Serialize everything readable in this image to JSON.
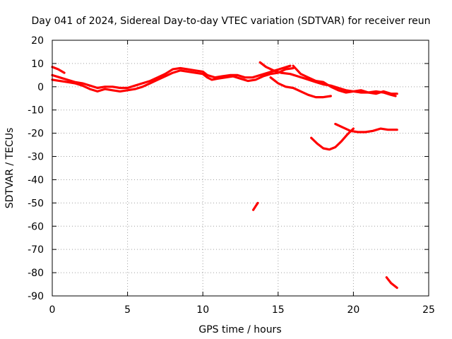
{
  "chart_data": {
    "type": "line",
    "title": "Day 041 of 2024, Sidereal Day-to-day VTEC variation (SDTVAR) for receiver reun",
    "xlabel": "GPS time / hours",
    "ylabel": "SDTVAR / TECUs",
    "xlim": [
      0,
      25
    ],
    "ylim": [
      -90,
      20
    ],
    "xticks": [
      0,
      5,
      10,
      15,
      20,
      25
    ],
    "yticks": [
      20,
      10,
      0,
      -10,
      -20,
      -30,
      -40,
      -50,
      -60,
      -70,
      -80,
      -90
    ],
    "grid": true,
    "color": "#ff0000",
    "series": [
      {
        "name": "arc-main-1",
        "points": [
          [
            0,
            3
          ],
          [
            0.5,
            2.5
          ],
          [
            1,
            2
          ],
          [
            1.5,
            1.5
          ],
          [
            2,
            0.5
          ],
          [
            2.5,
            -1
          ],
          [
            3,
            -2
          ],
          [
            3.5,
            -1
          ],
          [
            4,
            -1.5
          ],
          [
            4.5,
            -2
          ],
          [
            5,
            -1.5
          ],
          [
            5.5,
            -1
          ],
          [
            6,
            0
          ],
          [
            6.5,
            1.5
          ],
          [
            7,
            3
          ],
          [
            7.5,
            4.5
          ],
          [
            8,
            6
          ],
          [
            8.5,
            7
          ],
          [
            9,
            6.5
          ],
          [
            9.5,
            6
          ],
          [
            10,
            5.5
          ],
          [
            10.3,
            4
          ],
          [
            10.6,
            3
          ],
          [
            11,
            3.5
          ],
          [
            11.5,
            4
          ],
          [
            12,
            4.5
          ],
          [
            12.5,
            3.5
          ],
          [
            13,
            2.5
          ],
          [
            13.5,
            3
          ],
          [
            14,
            4.5
          ],
          [
            14.5,
            5.5
          ],
          [
            15,
            6
          ],
          [
            15.5,
            7.5
          ],
          [
            16,
            8
          ]
        ]
      },
      {
        "name": "arc-main-2",
        "points": [
          [
            0,
            5
          ],
          [
            0.5,
            4
          ],
          [
            1,
            3
          ],
          [
            1.5,
            2
          ],
          [
            2,
            1.5
          ],
          [
            2.5,
            0.5
          ],
          [
            3,
            -0.5
          ],
          [
            3.5,
            0
          ],
          [
            4,
            0
          ],
          [
            4.5,
            -0.5
          ],
          [
            5,
            -0.5
          ],
          [
            5.5,
            0.5
          ],
          [
            6,
            1.5
          ],
          [
            6.5,
            2.5
          ],
          [
            7,
            4
          ],
          [
            7.5,
            5.5
          ],
          [
            8,
            7.5
          ],
          [
            8.5,
            8
          ],
          [
            9,
            7.5
          ],
          [
            9.5,
            7
          ],
          [
            10,
            6.5
          ],
          [
            10.3,
            5
          ],
          [
            10.8,
            4
          ],
          [
            11.3,
            4.5
          ],
          [
            11.8,
            5
          ],
          [
            12.3,
            5
          ],
          [
            12.8,
            4
          ],
          [
            13.3,
            4
          ],
          [
            13.8,
            5
          ],
          [
            14.3,
            6
          ],
          [
            14.8,
            7
          ],
          [
            15.3,
            8
          ],
          [
            15.8,
            9
          ]
        ]
      },
      {
        "name": "arc-start",
        "points": [
          [
            0,
            8.5
          ],
          [
            0.4,
            7.5
          ],
          [
            0.8,
            6
          ]
        ]
      },
      {
        "name": "arc-mid-right-1",
        "points": [
          [
            13.8,
            10.5
          ],
          [
            14.2,
            8.5
          ],
          [
            14.7,
            7
          ],
          [
            15.2,
            6
          ],
          [
            15.8,
            5.5
          ],
          [
            16.3,
            4.5
          ],
          [
            16.8,
            3.5
          ],
          [
            17.5,
            2
          ],
          [
            18,
            1
          ],
          [
            18.5,
            0.5
          ],
          [
            19,
            -0.5
          ],
          [
            19.5,
            -1.5
          ],
          [
            20,
            -2
          ],
          [
            20.5,
            -2.5
          ],
          [
            21,
            -2.5
          ],
          [
            21.5,
            -2
          ],
          [
            22,
            -2.5
          ],
          [
            22.5,
            -3.5
          ],
          [
            22.8,
            -4
          ]
        ]
      },
      {
        "name": "arc-mid-right-2",
        "points": [
          [
            16,
            9
          ],
          [
            16.5,
            5.5
          ],
          [
            17,
            4
          ],
          [
            17.5,
            2.5
          ],
          [
            18,
            2
          ],
          [
            18.5,
            0
          ],
          [
            19,
            -1.5
          ],
          [
            19.5,
            -2.5
          ],
          [
            20,
            -2
          ],
          [
            20.5,
            -1.5
          ],
          [
            21,
            -2.5
          ],
          [
            21.5,
            -3
          ],
          [
            22,
            -2
          ],
          [
            22.5,
            -3
          ],
          [
            22.9,
            -3
          ]
        ]
      },
      {
        "name": "arc-dip",
        "points": [
          [
            14.5,
            4
          ],
          [
            15,
            1.5
          ],
          [
            15.5,
            0
          ],
          [
            16,
            -0.5
          ],
          [
            16.5,
            -2
          ],
          [
            17,
            -3.5
          ],
          [
            17.5,
            -4.5
          ],
          [
            18,
            -4.5
          ],
          [
            18.5,
            -4
          ]
        ]
      },
      {
        "name": "arc-low-1",
        "points": [
          [
            17.2,
            -22
          ],
          [
            17.6,
            -24.5
          ],
          [
            18,
            -26.5
          ],
          [
            18.4,
            -27
          ],
          [
            18.8,
            -26
          ],
          [
            19.2,
            -23.5
          ],
          [
            19.6,
            -20.5
          ],
          [
            20,
            -18
          ]
        ]
      },
      {
        "name": "arc-low-2",
        "points": [
          [
            18.8,
            -16
          ],
          [
            19.3,
            -17.5
          ],
          [
            19.8,
            -19
          ],
          [
            20.3,
            -19.5
          ],
          [
            20.8,
            -19.5
          ],
          [
            21.3,
            -19
          ],
          [
            21.8,
            -18
          ],
          [
            22.3,
            -18.5
          ],
          [
            22.9,
            -18.5
          ]
        ]
      },
      {
        "name": "arc-spike-50",
        "points": [
          [
            13.35,
            -53
          ],
          [
            13.5,
            -51.5
          ],
          [
            13.65,
            -50
          ]
        ]
      },
      {
        "name": "arc-tail-85",
        "points": [
          [
            22.2,
            -82
          ],
          [
            22.5,
            -84.5
          ],
          [
            22.9,
            -86.5
          ]
        ]
      }
    ]
  }
}
